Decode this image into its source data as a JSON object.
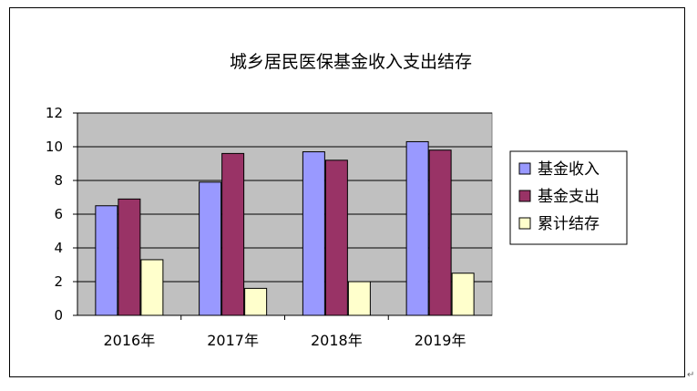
{
  "chart_data": {
    "type": "bar",
    "title": "城乡居民医保基金收入支出结存",
    "xlabel": "",
    "ylabel": "",
    "categories": [
      "2016年",
      "2017年",
      "2018年",
      "2019年"
    ],
    "series": [
      {
        "name": "基金收入",
        "values": [
          6.5,
          7.9,
          9.7,
          10.3
        ],
        "color": "#9999ff"
      },
      {
        "name": "基金支出",
        "values": [
          6.9,
          9.6,
          9.2,
          9.8
        ],
        "color": "#993366"
      },
      {
        "name": "累计结存",
        "values": [
          3.3,
          1.6,
          2.0,
          2.5
        ],
        "color": "#ffffcc"
      }
    ],
    "ylim": [
      0,
      12
    ],
    "yticks": [
      0,
      2,
      4,
      6,
      8,
      10,
      12
    ],
    "grid": true,
    "plot_background": "#c0c0c0",
    "legend_position": "right"
  },
  "corner_mark": "↵"
}
